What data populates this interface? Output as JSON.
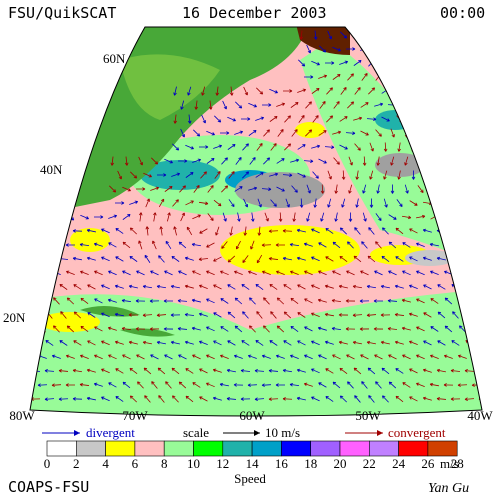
{
  "header": {
    "source": "FSU/QuikSCAT",
    "date": "16 December 2003",
    "time": "00:00"
  },
  "map": {
    "lat_labels": [
      "60N",
      "40N",
      "20N"
    ],
    "lon_labels": [
      "80W",
      "70W",
      "60W",
      "50W",
      "40W"
    ]
  },
  "legend": {
    "divergent": "divergent",
    "scale": "scale",
    "scale_value": "10 m/s",
    "convergent": "convergent"
  },
  "colorbar": {
    "labels": [
      0,
      2,
      4,
      6,
      8,
      10,
      12,
      14,
      16,
      18,
      20,
      22,
      24,
      26,
      28
    ],
    "colors": [
      "#ffffff",
      "#c8c8c8",
      "#ffff00",
      "#ffc0c0",
      "#98fb98",
      "#00ff00",
      "#20b2aa",
      "#00a0c8",
      "#0000ff",
      "#a060ff",
      "#ff60ff",
      "#c080ff",
      "#ff0000",
      "#d04000",
      "#000000"
    ],
    "unit": "m/s",
    "title": "Speed"
  },
  "footer": {
    "left": "COAPS-FSU",
    "right": "Yan Gu"
  }
}
